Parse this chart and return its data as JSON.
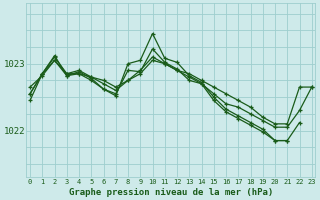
{
  "title": "Graphe pression niveau de la mer (hPa)",
  "background_color": "#ceeaea",
  "grid_color": "#9ecece",
  "line_color": "#1a5c1a",
  "yticks": [
    1022,
    1023
  ],
  "ylim": [
    1021.3,
    1023.9
  ],
  "xlim": [
    -0.3,
    23.3
  ],
  "series": [
    [
      1022.55,
      1022.85,
      1023.05,
      1022.85,
      1022.85,
      1022.8,
      1022.75,
      1022.65,
      1022.75,
      1022.85,
      1023.05,
      1023.0,
      1022.9,
      1022.85,
      1022.75,
      1022.65,
      1022.55,
      1022.45,
      1022.35,
      1022.2,
      1022.1,
      1022.1,
      1022.65,
      1022.65
    ],
    [
      1022.55,
      1022.85,
      1023.1,
      1022.85,
      1022.9,
      1022.8,
      1022.7,
      1022.6,
      1022.75,
      1022.9,
      1023.1,
      1023.0,
      1022.9,
      1022.8,
      1022.7,
      1022.55,
      1022.4,
      1022.35,
      1022.25,
      1022.15,
      1022.05,
      1022.05,
      1022.3,
      1022.65
    ],
    [
      1022.45,
      1022.85,
      1023.12,
      1022.82,
      1022.88,
      1022.78,
      1022.62,
      1022.52,
      1023.0,
      1023.05,
      1023.45,
      1023.08,
      1023.02,
      1022.82,
      1022.72,
      1022.5,
      1022.32,
      1022.22,
      1022.12,
      1022.02,
      1021.85,
      1021.85,
      1022.12,
      null
    ],
    [
      1022.65,
      1022.82,
      1023.05,
      1022.82,
      1022.85,
      1022.75,
      1022.62,
      1022.55,
      1022.9,
      1022.88,
      1023.22,
      1023.02,
      1022.92,
      1022.75,
      1022.7,
      1022.45,
      1022.28,
      1022.18,
      1022.08,
      1021.98,
      1021.85,
      1021.85,
      null,
      null
    ]
  ]
}
